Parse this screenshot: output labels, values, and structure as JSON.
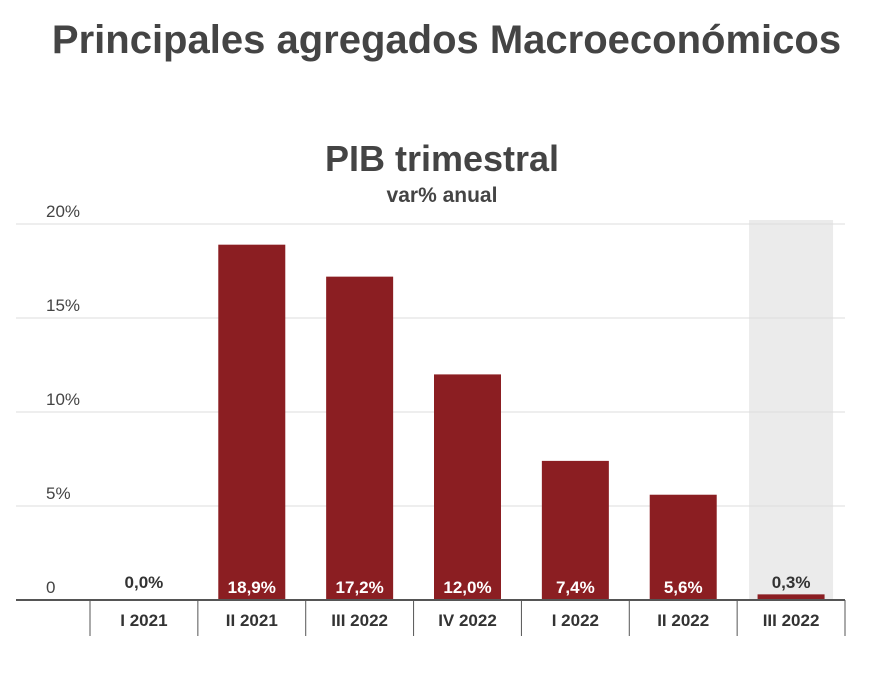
{
  "header": {
    "title": "Principales agregados Macroeconómicos"
  },
  "chart_data": {
    "type": "bar",
    "title": "PIB trimestral",
    "subtitle": "var% anual",
    "xlabel": "",
    "ylabel": "",
    "categories": [
      "I 2021",
      "II 2021",
      "III 2022",
      "IV 2022",
      "I 2022",
      "II 2022",
      "III 2022"
    ],
    "values": [
      0.0,
      18.9,
      17.2,
      12.0,
      7.4,
      5.6,
      0.3
    ],
    "value_labels": [
      "0,0%",
      "18,9%",
      "17,2%",
      "12,0%",
      "7,4%",
      "5,6%",
      "0,3%"
    ],
    "y_ticks": [
      0,
      5,
      10,
      15,
      20
    ],
    "y_tick_labels": [
      "0",
      "5%",
      "10%",
      "15%",
      "20%"
    ],
    "ylim": [
      0,
      20
    ],
    "grid": true,
    "highlight_category_index": 6,
    "colors": {
      "bar": "#8b1e22",
      "highlight_band": "#ebebeb",
      "grid": "#dddddd",
      "axis": "#555555"
    }
  }
}
